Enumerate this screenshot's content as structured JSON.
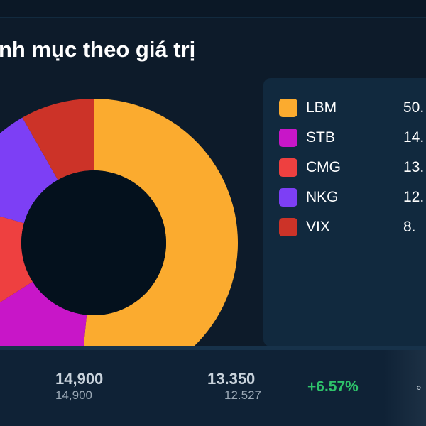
{
  "header": {
    "title": "nh mục theo giá trị"
  },
  "chart_data": {
    "type": "pie",
    "categories": [
      "LBM",
      "STB",
      "CMG",
      "NKG",
      "VIX"
    ],
    "values": [
      50.0,
      14.0,
      13.0,
      12.0,
      8.0
    ],
    "colors": [
      "#fbab2f",
      "#c816c8",
      "#ee4040",
      "#7d3ff5",
      "#cc3328"
    ]
  },
  "legend": {
    "items": [
      {
        "label": "LBM",
        "value": "50.",
        "color": "#fbab2f"
      },
      {
        "label": "STB",
        "value": "14.",
        "color": "#c816c8"
      },
      {
        "label": "CMG",
        "value": "13.",
        "color": "#ee4040"
      },
      {
        "label": "NKG",
        "value": "12.",
        "color": "#7d3ff5"
      },
      {
        "label": "VIX",
        "value": "8.",
        "color": "#cc3328"
      }
    ]
  },
  "holding_row": {
    "market_price": "14,900",
    "market_price_sub": "14,900",
    "avg_price": "13.350",
    "avg_price_sub": "12.527",
    "change": "+6.57%",
    "change_color": "#2ec26a"
  }
}
